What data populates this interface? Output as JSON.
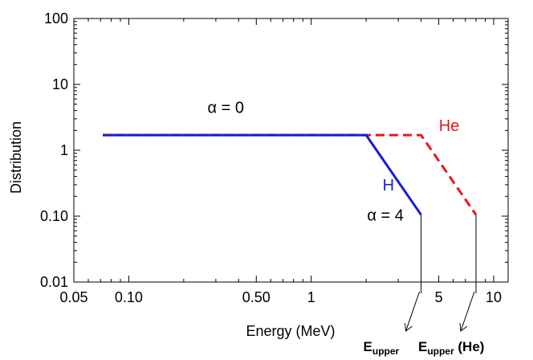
{
  "chart_data": {
    "type": "line",
    "xlabel": "Energy (MeV)",
    "ylabel": "Distribution",
    "xscale": "log",
    "yscale": "log",
    "xlim": [
      0.05,
      12
    ],
    "ylim": [
      0.01,
      100
    ],
    "x_ticks": [
      {
        "value": 0.05,
        "label": "0.05"
      },
      {
        "value": 0.1,
        "label": "0.10"
      },
      {
        "value": 0.5,
        "label": "0.50"
      },
      {
        "value": 1,
        "label": "1"
      },
      {
        "value": 5,
        "label": "5"
      },
      {
        "value": 10,
        "label": "10"
      }
    ],
    "y_ticks": [
      {
        "value": 0.01,
        "label": "0.01"
      },
      {
        "value": 0.1,
        "label": "0.10"
      },
      {
        "value": 1,
        "label": "1"
      },
      {
        "value": 10,
        "label": "10"
      },
      {
        "value": 100,
        "label": "100"
      }
    ],
    "grid": false,
    "series": [
      {
        "name": "H",
        "color": "#1a1ad6",
        "dash": "solid",
        "x": [
          0.072,
          2.0,
          4.0
        ],
        "y": [
          1.7,
          1.7,
          0.105
        ]
      },
      {
        "name": "He",
        "color": "#e8161e",
        "dash": "dashed",
        "x": [
          0.072,
          4.0,
          8.0
        ],
        "y": [
          1.7,
          1.7,
          0.105
        ]
      }
    ],
    "annotations": [
      {
        "id": "alpha0",
        "text": "α = 0",
        "x": 0.34,
        "y": 4.5,
        "color": "#000000"
      },
      {
        "id": "alpha4",
        "text": "α = 4",
        "x": 2.55,
        "y": 0.105,
        "color": "#000000"
      },
      {
        "id": "label-h",
        "text": "H",
        "x": 2.65,
        "y": 0.3,
        "color": "#1a1ad6"
      },
      {
        "id": "label-he",
        "text": "He",
        "x": 5.7,
        "y": 2.4,
        "color": "#e8161e"
      }
    ],
    "markers": [
      {
        "id": "eupper-h",
        "x": 4.0,
        "y": 0.105,
        "label_main": "E",
        "label_sub": "upper",
        "label_suffix": ""
      },
      {
        "id": "eupper-he",
        "x": 8.0,
        "y": 0.105,
        "label_main": "E",
        "label_sub": "upper",
        "label_suffix": " (He)"
      }
    ]
  }
}
